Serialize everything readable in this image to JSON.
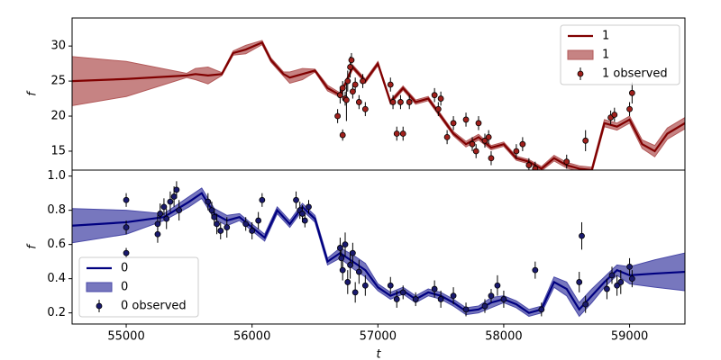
{
  "chart_data": [
    {
      "type": "line",
      "ylabel": "f",
      "legend": "upper right",
      "xlim": [
        54570,
        59440
      ],
      "ylim": [
        12.3,
        34
      ],
      "yticks": [
        15,
        20,
        25,
        30
      ],
      "series": [
        {
          "type": "line",
          "name": "1",
          "color": "#800000",
          "x": [
            54570,
            55000,
            55480,
            55550,
            55650,
            55760,
            55850,
            55950,
            56080,
            56150,
            56250,
            56300,
            56400,
            56500,
            56600,
            56700,
            56800,
            56900,
            57000,
            57100,
            57200,
            57300,
            57400,
            57500,
            57600,
            57700,
            57800,
            57900,
            58000,
            58100,
            58200,
            58300,
            58400,
            58500,
            58600,
            58700,
            58800,
            58900,
            59000,
            59100,
            59200,
            59300,
            59440
          ],
          "values": [
            25,
            25.3,
            25.8,
            26,
            25.8,
            26,
            29,
            29.5,
            30.5,
            28,
            26,
            25.5,
            26,
            26.5,
            24,
            23,
            27,
            25,
            27.5,
            22,
            24,
            22,
            22.5,
            20,
            17.5,
            16,
            17,
            15.5,
            16,
            14,
            13.5,
            12.5,
            14,
            13,
            12.5,
            12.3,
            19,
            18.5,
            19.5,
            16,
            15,
            17.5,
            19
          ]
        },
        {
          "type": "band",
          "name": "1",
          "color": "#b35a5a",
          "x": [
            54570,
            55000,
            55480,
            55550,
            55650,
            55760,
            55850,
            55950,
            56080,
            56150,
            56250,
            56300,
            56400,
            56500,
            56600,
            56700,
            56800,
            56900,
            57000,
            57100,
            57200,
            57300,
            57400,
            57500,
            57600,
            57700,
            57800,
            57900,
            58000,
            58100,
            58200,
            58300,
            58400,
            58500,
            58600,
            58700,
            58800,
            58900,
            59000,
            59100,
            59200,
            59300,
            59440
          ],
          "lower": [
            21.5,
            22.8,
            25.5,
            25.2,
            24.6,
            25.8,
            28.7,
            28.9,
            30.2,
            27.7,
            25.7,
            24.7,
            25.2,
            26.3,
            23.6,
            22.7,
            26.7,
            24.7,
            27.2,
            21.7,
            23.7,
            21.7,
            22.2,
            19.7,
            17.2,
            15.6,
            16.6,
            15.2,
            15.7,
            13.7,
            13.2,
            12.2,
            13.6,
            12.6,
            12.1,
            11.9,
            18.5,
            18,
            19,
            15.4,
            14.2,
            16.7,
            18.2
          ],
          "upper": [
            28.5,
            27.8,
            26.1,
            26.8,
            27,
            26.2,
            29.3,
            30.1,
            30.8,
            28.3,
            26.3,
            26.3,
            26.8,
            26.7,
            24.4,
            23.3,
            27.3,
            25.3,
            27.8,
            22.3,
            24.3,
            22.3,
            22.8,
            20.3,
            17.8,
            16.4,
            17.4,
            15.8,
            16.3,
            14.3,
            13.8,
            12.8,
            14.4,
            13.4,
            12.9,
            12.7,
            19.5,
            19,
            20,
            16.6,
            15.8,
            18.3,
            19.8
          ]
        },
        {
          "type": "errorbar",
          "name": "1 observed",
          "color": "#a0201c",
          "x": [
            56680,
            56700,
            56720,
            56740,
            56760,
            56780,
            56790,
            56720,
            56800,
            56820,
            56850,
            56880,
            56900,
            56750,
            57100,
            57120,
            57150,
            57180,
            57200,
            57250,
            57450,
            57480,
            57500,
            57550,
            57600,
            57700,
            57750,
            57780,
            57800,
            57850,
            57880,
            57900,
            58100,
            58150,
            58200,
            58250,
            58500,
            58650,
            58850,
            58880,
            59000,
            59020
          ],
          "values": [
            20,
            23,
            24,
            22.5,
            25,
            27,
            28,
            17.3,
            23.5,
            24.5,
            22,
            25,
            21,
            22.3,
            24.5,
            22,
            17.5,
            22,
            17.5,
            22,
            23,
            21,
            22.5,
            17,
            19,
            19.5,
            16,
            15,
            19,
            16.5,
            17,
            14,
            15,
            16,
            13,
            12.5,
            13.5,
            16.5,
            19.8,
            20.2,
            21,
            23.3
          ],
          "err": [
            1,
            1.2,
            1,
            1,
            1.5,
            1.5,
            1,
            0.8,
            1,
            1,
            1,
            1,
            1,
            3,
            1,
            1,
            1,
            1,
            1,
            1,
            1,
            1,
            1,
            1,
            1,
            1,
            1,
            1,
            1,
            1,
            1,
            1,
            1,
            1,
            1,
            1,
            1,
            1.5,
            1,
            1,
            1,
            1.5
          ]
        }
      ]
    },
    {
      "type": "line",
      "ylabel": "f",
      "xlabel": "t",
      "legend": "lower left",
      "xlim": [
        54570,
        59440
      ],
      "ylim": [
        0.135,
        1.035
      ],
      "xticks": [
        55000,
        56000,
        57000,
        58000,
        59000
      ],
      "yticks": [
        0.2,
        0.4,
        0.6,
        0.8,
        {
          "value": 1,
          "label": "1.0"
        }
      ],
      "series": [
        {
          "type": "line",
          "name": "0",
          "color": "#000080",
          "x": [
            54570,
            55000,
            55300,
            55500,
            55600,
            55700,
            55800,
            55900,
            56000,
            56100,
            56200,
            56300,
            56400,
            56500,
            56600,
            56700,
            56800,
            56900,
            57000,
            57100,
            57200,
            57300,
            57400,
            57500,
            57600,
            57700,
            57800,
            57900,
            58000,
            58100,
            58200,
            58300,
            58400,
            58500,
            58600,
            58700,
            58800,
            58900,
            59000,
            59200,
            59440
          ],
          "values": [
            0.71,
            0.73,
            0.76,
            0.85,
            0.9,
            0.78,
            0.74,
            0.76,
            0.7,
            0.64,
            0.8,
            0.72,
            0.82,
            0.75,
            0.5,
            0.55,
            0.5,
            0.45,
            0.35,
            0.3,
            0.33,
            0.28,
            0.32,
            0.3,
            0.26,
            0.21,
            0.22,
            0.26,
            0.28,
            0.25,
            0.2,
            0.22,
            0.38,
            0.34,
            0.22,
            0.3,
            0.38,
            0.45,
            0.42,
            0.43,
            0.44
          ]
        },
        {
          "type": "band",
          "name": "0",
          "color": "#4a4aa8",
          "x": [
            54570,
            55000,
            55300,
            55500,
            55600,
            55700,
            55800,
            55900,
            56000,
            56100,
            56200,
            56300,
            56400,
            56500,
            56600,
            56700,
            56800,
            56900,
            57000,
            57100,
            57200,
            57300,
            57400,
            57500,
            57600,
            57700,
            57800,
            57900,
            58000,
            58100,
            58200,
            58300,
            58400,
            58500,
            58600,
            58700,
            58800,
            58900,
            59000,
            59200,
            59440
          ],
          "lower": [
            0.61,
            0.66,
            0.74,
            0.82,
            0.87,
            0.75,
            0.71,
            0.74,
            0.68,
            0.62,
            0.78,
            0.7,
            0.8,
            0.73,
            0.48,
            0.52,
            0.46,
            0.41,
            0.33,
            0.28,
            0.31,
            0.26,
            0.3,
            0.28,
            0.24,
            0.19,
            0.2,
            0.23,
            0.26,
            0.23,
            0.18,
            0.2,
            0.35,
            0.3,
            0.18,
            0.26,
            0.35,
            0.42,
            0.37,
            0.35,
            0.33
          ],
          "upper": [
            0.81,
            0.8,
            0.78,
            0.88,
            0.93,
            0.81,
            0.77,
            0.78,
            0.72,
            0.66,
            0.82,
            0.74,
            0.84,
            0.77,
            0.52,
            0.58,
            0.54,
            0.49,
            0.37,
            0.32,
            0.35,
            0.3,
            0.34,
            0.32,
            0.28,
            0.23,
            0.24,
            0.29,
            0.3,
            0.27,
            0.22,
            0.24,
            0.41,
            0.38,
            0.26,
            0.34,
            0.41,
            0.48,
            0.47,
            0.51,
            0.55
          ]
        },
        {
          "type": "errorbar",
          "name": "0 observed",
          "color": "#1a1a6e",
          "x": [
            55000,
            55000,
            55000,
            55250,
            55270,
            55300,
            55320,
            55350,
            55380,
            55400,
            55420,
            55250,
            55650,
            55680,
            55700,
            55720,
            55750,
            55800,
            55950,
            56000,
            56050,
            56080,
            56350,
            56380,
            56400,
            56420,
            56450,
            56700,
            56710,
            56720,
            56740,
            56760,
            56780,
            56800,
            56820,
            56850,
            56900,
            57100,
            57150,
            57200,
            57300,
            57450,
            57500,
            57600,
            57700,
            57850,
            57900,
            57950,
            58000,
            58250,
            58300,
            58600,
            58620,
            58650,
            58820,
            58860,
            58900,
            58930,
            59000,
            59020
          ],
          "values": [
            0.86,
            0.7,
            0.55,
            0.72,
            0.78,
            0.82,
            0.75,
            0.85,
            0.88,
            0.92,
            0.8,
            0.66,
            0.85,
            0.8,
            0.76,
            0.72,
            0.68,
            0.7,
            0.72,
            0.68,
            0.74,
            0.86,
            0.86,
            0.8,
            0.78,
            0.74,
            0.82,
            0.58,
            0.52,
            0.45,
            0.6,
            0.38,
            0.48,
            0.55,
            0.32,
            0.44,
            0.36,
            0.36,
            0.28,
            0.32,
            0.28,
            0.34,
            0.28,
            0.3,
            0.22,
            0.24,
            0.3,
            0.36,
            0.28,
            0.45,
            0.22,
            0.38,
            0.65,
            0.25,
            0.34,
            0.42,
            0.36,
            0.38,
            0.47,
            0.4
          ],
          "err": [
            0.04,
            0.04,
            0.03,
            0.05,
            0.06,
            0.05,
            0.06,
            0.06,
            0.06,
            0.05,
            0.06,
            0.05,
            0.05,
            0.05,
            0.05,
            0.06,
            0.05,
            0.06,
            0.04,
            0.05,
            0.05,
            0.04,
            0.05,
            0.05,
            0.05,
            0.04,
            0.04,
            0.06,
            0.07,
            0.06,
            0.07,
            0.07,
            0.08,
            0.06,
            0.06,
            0.07,
            0.06,
            0.05,
            0.05,
            0.04,
            0.04,
            0.05,
            0.05,
            0.05,
            0.04,
            0.04,
            0.04,
            0.06,
            0.05,
            0.05,
            0.04,
            0.06,
            0.08,
            0.05,
            0.06,
            0.05,
            0.06,
            0.07,
            0.05,
            0.05
          ]
        }
      ]
    }
  ]
}
